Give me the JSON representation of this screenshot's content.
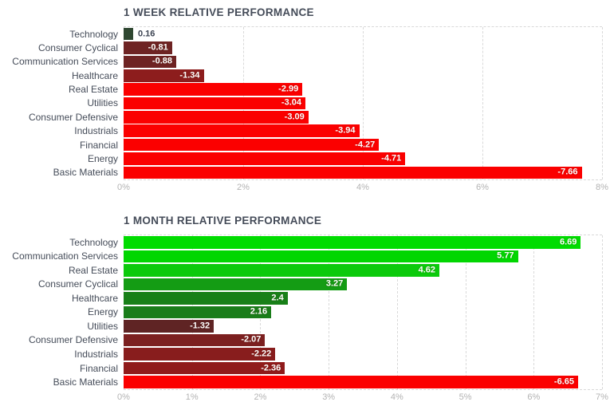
{
  "styles": {
    "background": "#ffffff",
    "title_color": "#454c59",
    "category_label_color": "#454c59",
    "tick_label_color": "#b3b3b3",
    "gridline_color": "#d9d9d9",
    "value_label_color_inside": "#ffffff",
    "value_label_color_outside": "#3a4150",
    "positive_bright": "#00dc00",
    "negative_bright": "#fb0000"
  },
  "chart_data": [
    {
      "type": "bar",
      "orientation": "horizontal",
      "title": "1 WEEK RELATIVE PERFORMANCE",
      "xlabel": "",
      "ylabel": "",
      "unit": "%",
      "xlim": [
        0,
        8
      ],
      "x_ticks": [
        "0%",
        "2%",
        "4%",
        "6%",
        "8%"
      ],
      "grid": "dashed-vertical",
      "legend": "none",
      "categories": [
        "Technology",
        "Consumer Cyclical",
        "Communication Services",
        "Healthcare",
        "Real Estate",
        "Utilities",
        "Consumer Defensive",
        "Industrials",
        "Financial",
        "Energy",
        "Basic Materials"
      ],
      "values": [
        0.16,
        -0.81,
        -0.88,
        -1.34,
        -2.99,
        -3.04,
        -3.09,
        -3.94,
        -4.27,
        -4.71,
        -7.66
      ],
      "value_labels": [
        "0.16",
        "-0.81",
        "-0.88",
        "-1.34",
        "-2.99",
        "-3.04",
        "-3.09",
        "-3.94",
        "-4.27",
        "-4.71",
        "-7.66"
      ],
      "bar_colors": [
        "#2f4731",
        "#6e2323",
        "#6e2323",
        "#8d1d1d",
        "#fb0000",
        "#fb0000",
        "#fb0000",
        "#fb0000",
        "#fb0000",
        "#fb0000",
        "#fb0000"
      ]
    },
    {
      "type": "bar",
      "orientation": "horizontal",
      "title": "1 MONTH RELATIVE PERFORMANCE",
      "xlabel": "",
      "ylabel": "",
      "unit": "%",
      "xlim": [
        0,
        7
      ],
      "x_ticks": [
        "0%",
        "1%",
        "2%",
        "3%",
        "4%",
        "5%",
        "6%",
        "7%"
      ],
      "grid": "dashed-vertical",
      "legend": "none",
      "categories": [
        "Technology",
        "Communication Services",
        "Real Estate",
        "Consumer Cyclical",
        "Healthcare",
        "Energy",
        "Utilities",
        "Consumer Defensive",
        "Industrials",
        "Financial",
        "Basic Materials"
      ],
      "values": [
        6.69,
        5.77,
        4.62,
        3.27,
        2.4,
        2.16,
        -1.32,
        -2.07,
        -2.22,
        -2.36,
        -6.65
      ],
      "value_labels": [
        "6.69",
        "5.77",
        "4.62",
        "3.27",
        "2.4",
        "2.16",
        "-1.32",
        "-2.07",
        "-2.22",
        "-2.36",
        "-6.65"
      ],
      "bar_colors": [
        "#00dc00",
        "#01d601",
        "#0cca0c",
        "#149c14",
        "#188018",
        "#1a7d1a",
        "#5f2424",
        "#7c2020",
        "#881d1d",
        "#901b1b",
        "#fb0000"
      ]
    }
  ]
}
